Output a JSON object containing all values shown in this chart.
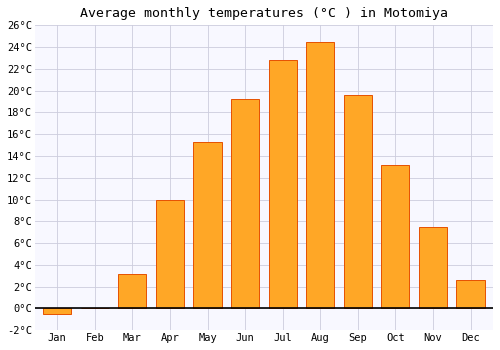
{
  "title": "Average monthly temperatures (°C ) in Motomiya",
  "months": [
    "Jan",
    "Feb",
    "Mar",
    "Apr",
    "May",
    "Jun",
    "Jul",
    "Aug",
    "Sep",
    "Oct",
    "Nov",
    "Dec"
  ],
  "temperatures": [
    -0.5,
    0.0,
    3.2,
    10.0,
    15.3,
    19.2,
    22.8,
    24.5,
    19.6,
    13.2,
    7.5,
    2.6
  ],
  "bar_color": "#FFA726",
  "bar_edge_color": "#E65100",
  "background_color": "#FFFFFF",
  "plot_bg_color": "#F8F8FF",
  "grid_color": "#CCCCDD",
  "ylim": [
    -2,
    26
  ],
  "yticks": [
    -2,
    0,
    2,
    4,
    6,
    8,
    10,
    12,
    14,
    16,
    18,
    20,
    22,
    24,
    26
  ],
  "ylabel_suffix": "°C",
  "title_fontsize": 9.5,
  "tick_fontsize": 7.5,
  "font_family": "monospace"
}
